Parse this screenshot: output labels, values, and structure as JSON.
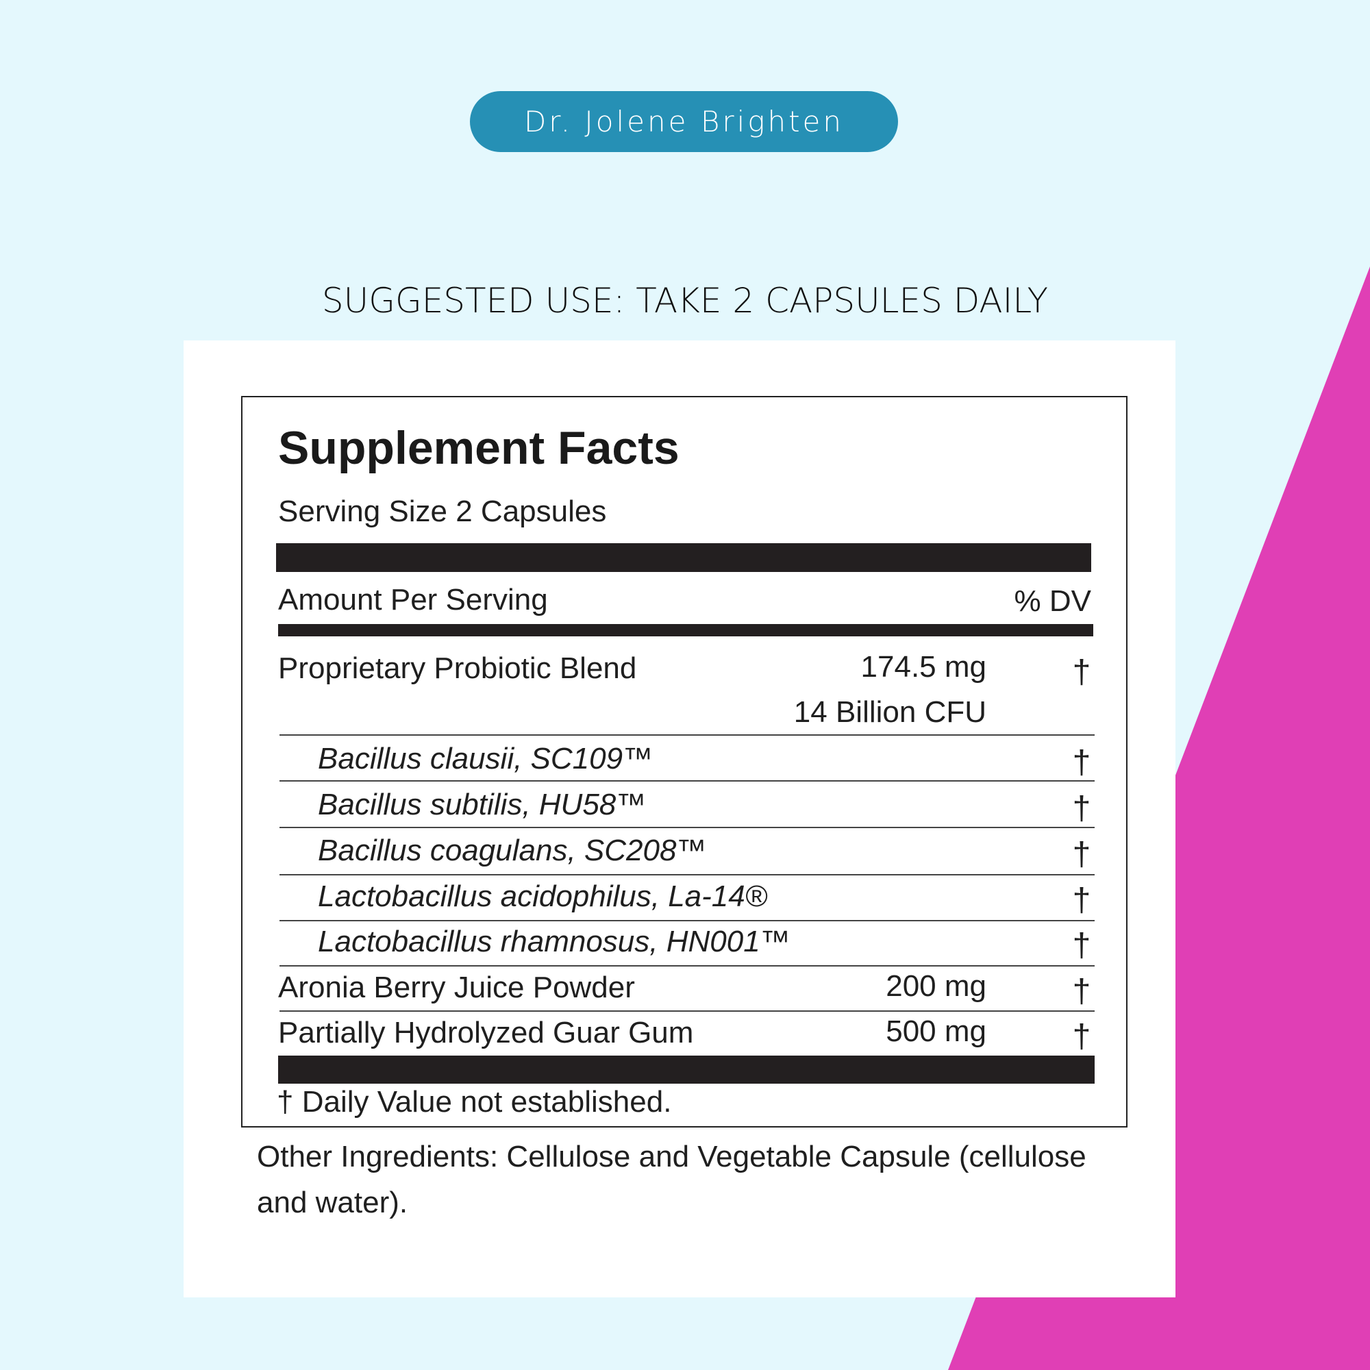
{
  "colors": {
    "background": "#e4f8fd",
    "accent_pink": "#e03fb5",
    "brand_pill": "#2690b5"
  },
  "brand": "Dr. Jolene Brighten",
  "suggested_use": "SUGGESTED USE: TAKE 2 CAPSULES DAILY",
  "facts": {
    "title": "Supplement Facts",
    "serving_size": "Serving Size 2 Capsules",
    "amount_per_serving": "Amount Per Serving",
    "dv_header": "% DV",
    "blend": {
      "name": "Proprietary Probiotic Blend",
      "amount": "174.5 mg",
      "cfu": "14 Billion CFU",
      "dv": "†"
    },
    "strains": [
      {
        "name": "Bacillus clausii, SC109™",
        "dv": "†"
      },
      {
        "name": "Bacillus subtilis, HU58™",
        "dv": "†"
      },
      {
        "name": "Bacillus coagulans, SC208™",
        "dv": "†"
      },
      {
        "name": "Lactobacillus acidophilus, La-14®",
        "dv": "†"
      },
      {
        "name": "Lactobacillus rhamnosus, HN001™",
        "dv": "†"
      }
    ],
    "ingredients": [
      {
        "name": "Aronia Berry Juice Powder",
        "amount": "200 mg",
        "dv": "†"
      },
      {
        "name": "Partially Hydrolyzed Guar Gum",
        "amount": "500 mg",
        "dv": "†"
      }
    ],
    "footnote": "† Daily Value not established."
  },
  "other_ingredients": {
    "line1": "Other Ingredients: Cellulose and Vegetable Capsule (cellulose",
    "line2": "and water)."
  }
}
